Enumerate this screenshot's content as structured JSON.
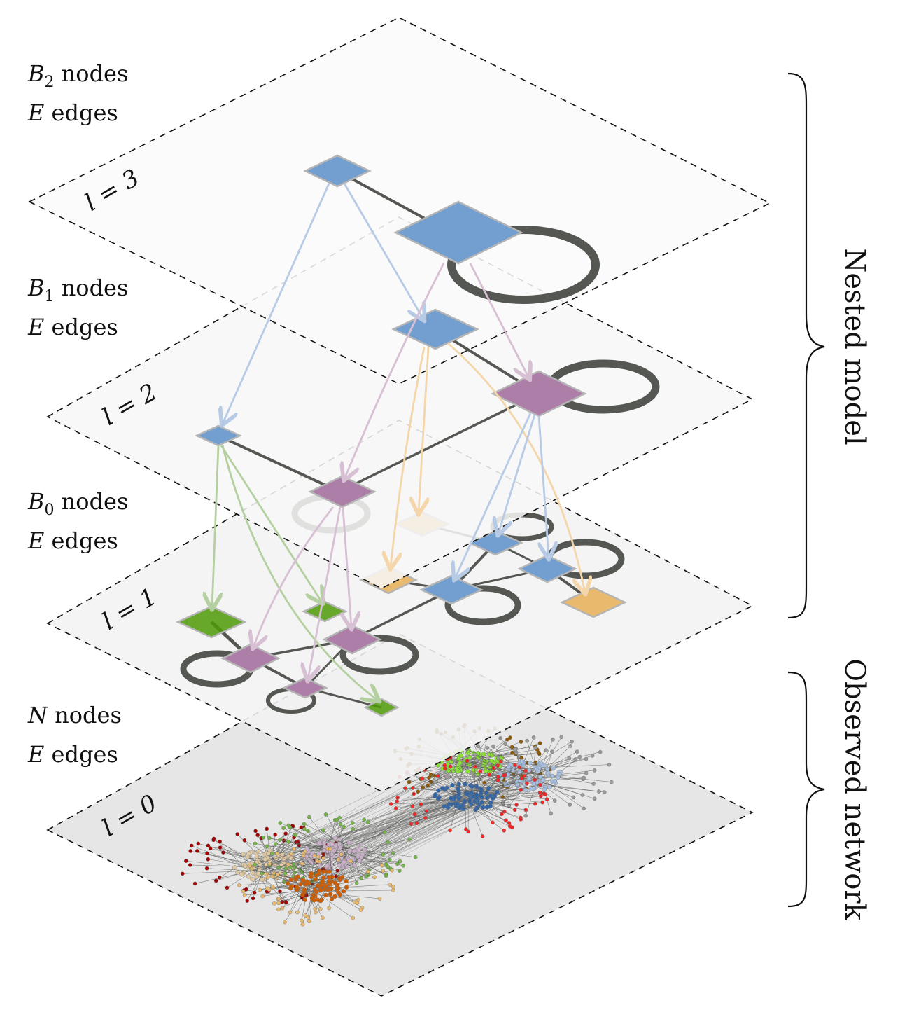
{
  "layers": [
    {
      "level_label": "l = 0",
      "nodes_label": "N nodes",
      "edges_label": "E edges",
      "nodes_symbol": "N",
      "nodes_word": " nodes",
      "edges_symbol": "E",
      "edges_word": " edges"
    },
    {
      "level_label": "l = 1",
      "nodes_label": "B0 nodes",
      "edges_label": "E edges",
      "nodes_symbol": "B",
      "nodes_sub": "0",
      "nodes_word": " nodes",
      "edges_symbol": "E",
      "edges_word": " edges"
    },
    {
      "level_label": "l = 2",
      "nodes_label": "B1 nodes",
      "edges_label": "E edges",
      "nodes_symbol": "B",
      "nodes_sub": "1",
      "nodes_word": " nodes",
      "edges_symbol": "E",
      "edges_word": " edges"
    },
    {
      "level_label": "l = 3",
      "nodes_label": "B2 nodes",
      "edges_label": "E edges",
      "nodes_symbol": "B",
      "nodes_sub": "2",
      "nodes_word": " nodes",
      "edges_symbol": "E",
      "edges_word": " edges"
    }
  ],
  "braces": {
    "nested": "Nested model",
    "observed": "Observed network"
  },
  "colors": {
    "blue": "#729fcf",
    "purple": "#ad7fa8",
    "orange": "#e9b96e",
    "green": "#4e9a06",
    "edge": "#555753",
    "plane_top": "#fafafa",
    "plane_bottom": "#e6e6e6"
  }
}
